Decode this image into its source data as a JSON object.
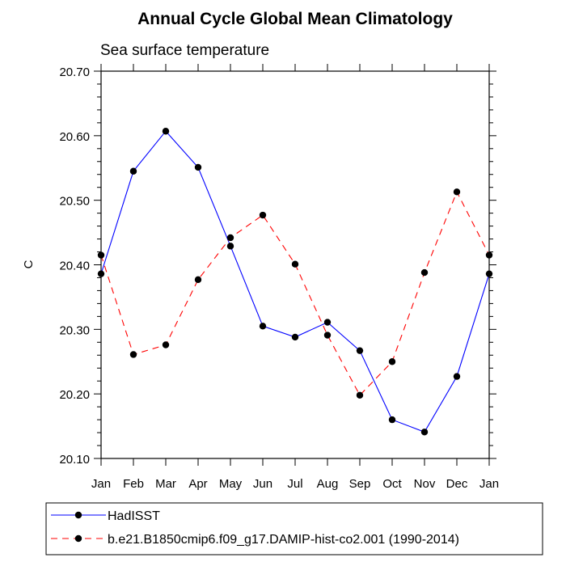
{
  "chart_data": {
    "type": "line",
    "title": "Annual Cycle Global Mean Climatology",
    "subtitle": "Sea surface temperature",
    "xlabel": "",
    "ylabel": "C",
    "ylim": [
      20.1,
      20.7
    ],
    "yticks": [
      "20.10",
      "20.20",
      "20.30",
      "20.40",
      "20.50",
      "20.60",
      "20.70"
    ],
    "categories": [
      "Jan",
      "Feb",
      "Mar",
      "Apr",
      "May",
      "Jun",
      "Jul",
      "Aug",
      "Sep",
      "Oct",
      "Nov",
      "Dec",
      "Jan"
    ],
    "series": [
      {
        "name": "HadISST",
        "color": "#0000ff",
        "dash": "solid",
        "values": [
          20.386,
          20.545,
          20.607,
          20.551,
          20.429,
          20.305,
          20.288,
          20.311,
          20.267,
          20.16,
          20.141,
          20.227,
          20.386
        ]
      },
      {
        "name": "b.e21.B1850cmip6.f09_g17.DAMIP-hist-co2.001 (1990-2014)",
        "color": "#ff0000",
        "dash": "dashed",
        "values": [
          20.415,
          20.261,
          20.276,
          20.377,
          20.442,
          20.477,
          20.401,
          20.291,
          20.198,
          20.25,
          20.388,
          20.513,
          20.415
        ]
      }
    ],
    "legend_position": "bottom"
  }
}
